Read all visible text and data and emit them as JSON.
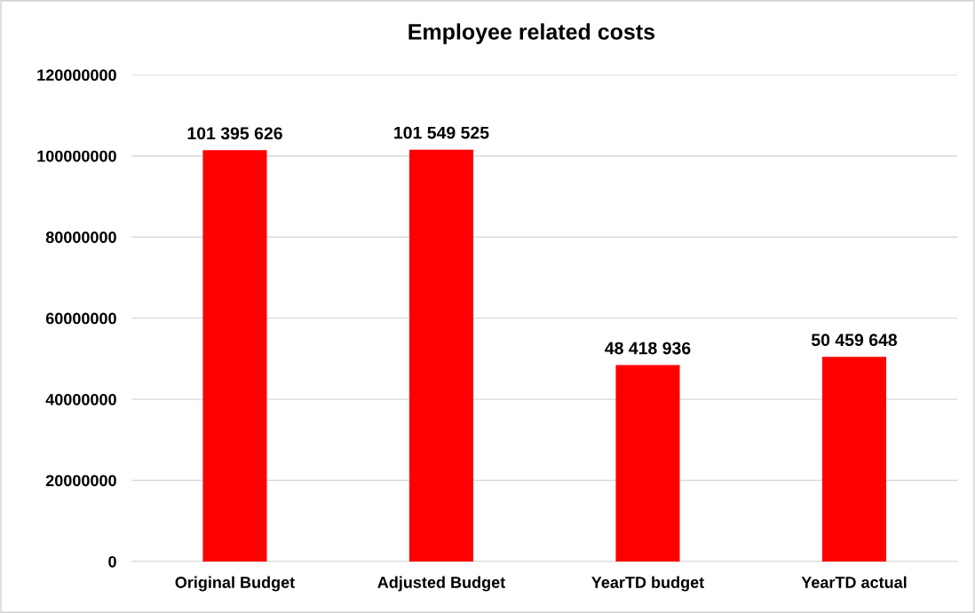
{
  "chart_data": {
    "type": "bar",
    "title": "Employee related costs",
    "categories": [
      "Original Budget",
      "Adjusted Budget",
      "YearTD budget",
      "YearTD actual"
    ],
    "values": [
      101395626,
      101549525,
      48418936,
      50459648
    ],
    "value_labels": [
      "101 395 626",
      "101 549 525",
      "48 418 936",
      "50 459 648"
    ],
    "color": "#ff0000",
    "ylim": [
      0,
      120000000
    ],
    "yticks": [
      0,
      20000000,
      40000000,
      60000000,
      80000000,
      100000000,
      120000000
    ],
    "grid": "y",
    "legend": false
  }
}
